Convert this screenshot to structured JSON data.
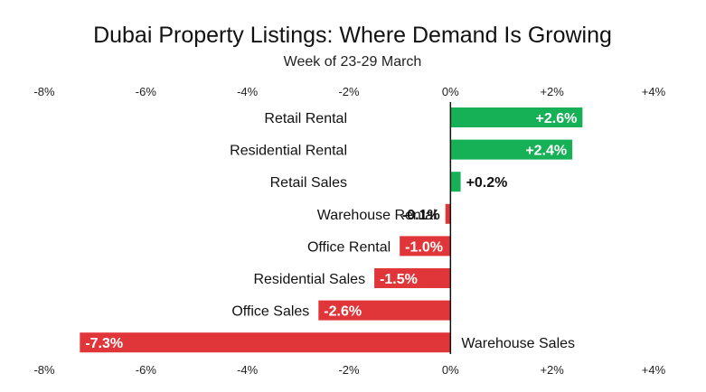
{
  "chart_data": {
    "type": "bar",
    "orientation": "horizontal",
    "title": "Dubai Property Listings: Where Demand Is Growing",
    "subtitle": "Week of 23-29 March",
    "xlabel": "",
    "ylabel": "",
    "xlim": [
      -8,
      4
    ],
    "ticks": [
      -8,
      -6,
      -4,
      -2,
      0,
      2,
      4
    ],
    "tick_labels": [
      "-8%",
      "-6%",
      "-4%",
      "-2%",
      "0%",
      "+2%",
      "+4%"
    ],
    "categories": [
      "Retail Rental",
      "Residential Rental",
      "Retail Sales",
      "Warehouse Rental",
      "Office Rental",
      "Residential Sales",
      "Office Sales",
      "Warehouse Sales"
    ],
    "values": [
      2.6,
      2.4,
      0.2,
      -0.1,
      -1.0,
      -1.5,
      -2.6,
      -7.3
    ],
    "value_labels": [
      "+2.6%",
      "+2.4%",
      "+0.2%",
      "-0.1%",
      "-1.0%",
      "-1.5%",
      "-2.6%",
      "-7.3%"
    ],
    "colors": {
      "positive": "#16b157",
      "negative": "#e0363a",
      "zero_line": "#111111"
    },
    "grid": false,
    "legend": "none"
  }
}
